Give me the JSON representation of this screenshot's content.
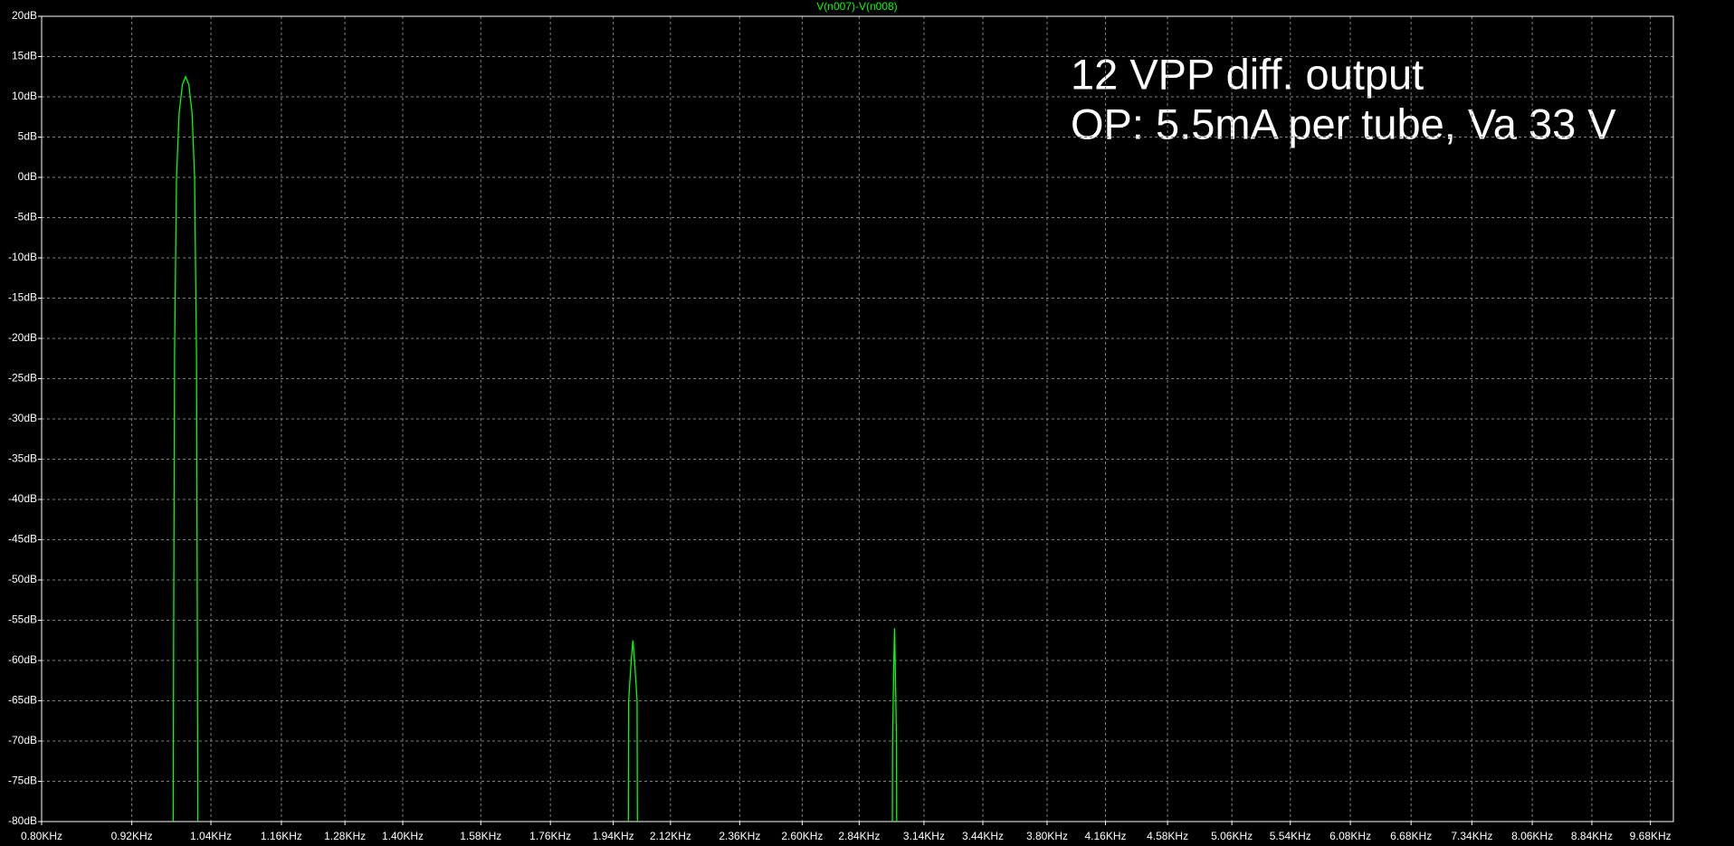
{
  "chart_data": {
    "type": "line",
    "title": "V(n007)-V(n008)",
    "annotations": [
      "12 VPP diff. output",
      "OP: 5.5mA per tube, Va 33 V"
    ],
    "color": "#00ff00",
    "xscale": "log",
    "grid": true,
    "x": [
      0.981,
      0.9815,
      0.983,
      0.986,
      0.99,
      0.995,
      1.0,
      1.005,
      1.01,
      1.014,
      1.017,
      1.0185,
      1.019,
      1.5,
      1.986,
      1.987,
      1.99,
      1.995,
      2.0,
      2.005,
      2.01,
      2.013,
      2.014,
      2.5,
      2.99,
      2.991,
      2.994,
      2.997,
      3.0,
      3.003,
      3.006,
      3.009,
      3.01
    ],
    "values": [
      -80,
      -60,
      -22,
      0,
      8,
      11.5,
      12.5,
      11.5,
      8,
      0,
      -22,
      -60,
      -80,
      null,
      -80,
      -65,
      -63,
      -60,
      -57.5,
      -60,
      -63,
      -65,
      -80,
      null,
      -80,
      -70,
      -65,
      -60,
      -56,
      -60,
      -65,
      -70,
      -80
    ],
    "xlim": [
      0.8,
      10.03
    ],
    "ylim": [
      -80,
      20
    ],
    "xticks": [
      {
        "value": 0.8,
        "label": "0.80KHz"
      },
      {
        "value": 0.92,
        "label": "0.92KHz"
      },
      {
        "value": 1.04,
        "label": "1.04KHz"
      },
      {
        "value": 1.16,
        "label": "1.16KHz"
      },
      {
        "value": 1.28,
        "label": "1.28KHz"
      },
      {
        "value": 1.4,
        "label": "1.40KHz"
      },
      {
        "value": 1.58,
        "label": "1.58KHz"
      },
      {
        "value": 1.76,
        "label": "1.76KHz"
      },
      {
        "value": 1.94,
        "label": "1.94KHz"
      },
      {
        "value": 2.12,
        "label": "2.12KHz"
      },
      {
        "value": 2.36,
        "label": "2.36KHz"
      },
      {
        "value": 2.6,
        "label": "2.60KHz"
      },
      {
        "value": 2.84,
        "label": "2.84KHz"
      },
      {
        "value": 3.14,
        "label": "3.14KHz"
      },
      {
        "value": 3.44,
        "label": "3.44KHz"
      },
      {
        "value": 3.8,
        "label": "3.80KHz"
      },
      {
        "value": 4.16,
        "label": "4.16KHz"
      },
      {
        "value": 4.58,
        "label": "4.58KHz"
      },
      {
        "value": 5.06,
        "label": "5.06KHz"
      },
      {
        "value": 5.54,
        "label": "5.54KHz"
      },
      {
        "value": 6.08,
        "label": "6.08KHz"
      },
      {
        "value": 6.68,
        "label": "6.68KHz"
      },
      {
        "value": 7.34,
        "label": "7.34KHz"
      },
      {
        "value": 8.06,
        "label": "8.06KHz"
      },
      {
        "value": 8.84,
        "label": "8.84KHz"
      },
      {
        "value": 9.68,
        "label": "9.68KHz"
      }
    ],
    "yticks": [
      {
        "value": 20,
        "label": "20dB"
      },
      {
        "value": 15,
        "label": "15dB"
      },
      {
        "value": 10,
        "label": "10dB"
      },
      {
        "value": 5,
        "label": "5dB"
      },
      {
        "value": 0,
        "label": "0dB"
      },
      {
        "value": -5,
        "label": "-5dB"
      },
      {
        "value": -10,
        "label": "-10dB"
      },
      {
        "value": -15,
        "label": "-15dB"
      },
      {
        "value": -20,
        "label": "-20dB"
      },
      {
        "value": -25,
        "label": "-25dB"
      },
      {
        "value": -30,
        "label": "-30dB"
      },
      {
        "value": -35,
        "label": "-35dB"
      },
      {
        "value": -40,
        "label": "-40dB"
      },
      {
        "value": -45,
        "label": "-45dB"
      },
      {
        "value": -50,
        "label": "-50dB"
      },
      {
        "value": -55,
        "label": "-55dB"
      },
      {
        "value": -60,
        "label": "-60dB"
      },
      {
        "value": -65,
        "label": "-65dB"
      },
      {
        "value": -70,
        "label": "-70dB"
      },
      {
        "value": -75,
        "label": "-75dB"
      },
      {
        "value": -80,
        "label": "-80dB"
      }
    ]
  }
}
